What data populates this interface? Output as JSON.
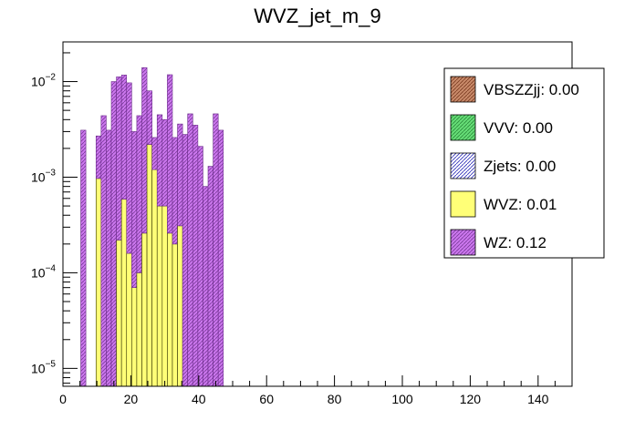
{
  "chart_data": {
    "type": "bar",
    "stacked": true,
    "title": "WVZ_jet_m_9",
    "xlabel": "",
    "ylabel": "",
    "x_scale": "linear",
    "y_scale": "log",
    "xlim": [
      0,
      150
    ],
    "ylim": [
      6.5e-06,
      0.026
    ],
    "bin_width": 1.5,
    "x_ticks": [
      0,
      20,
      40,
      60,
      80,
      100,
      120,
      140
    ],
    "y_ticks": [
      {
        "value": 1e-05,
        "base": "10",
        "exp": "−5"
      },
      {
        "value": 0.0001,
        "base": "10",
        "exp": "−4"
      },
      {
        "value": 0.001,
        "base": "10",
        "exp": "−3"
      },
      {
        "value": 0.01,
        "base": "10",
        "exp": "−2"
      }
    ],
    "legend": {
      "position": "top-right",
      "entries": [
        {
          "key": "VBSZZjj",
          "label": "VBSZZjj: 0.00",
          "color": "#a05a3c",
          "hatch": true
        },
        {
          "key": "VVV",
          "label": "VVV: 0.00",
          "color": "#66dd77",
          "hatch": true
        },
        {
          "key": "Zjets",
          "label": "Zjets: 0.00",
          "color": "#3333bb",
          "hatch": true
        },
        {
          "key": "WVZ",
          "label": "WVZ: 0.01",
          "color": "#ffff77",
          "hatch": false
        },
        {
          "key": "WZ",
          "label": "WZ: 0.12",
          "color": "#cc77ee",
          "hatch": true
        }
      ]
    },
    "bins": [
      {
        "x": 6.0,
        "WVZ": 0,
        "WZ": 0.0031
      },
      {
        "x": 10.5,
        "WVZ": 0.00097,
        "WZ": 0.0027
      },
      {
        "x": 12.0,
        "WVZ": 0,
        "WZ": 0.0044
      },
      {
        "x": 13.5,
        "WVZ": 0,
        "WZ": 0.0031
      },
      {
        "x": 15.0,
        "WVZ": 0,
        "WZ": 0.01
      },
      {
        "x": 16.5,
        "WVZ": 0.00022,
        "WZ": 0.0112
      },
      {
        "x": 18.0,
        "WVZ": 0.00059,
        "WZ": 0.0117
      },
      {
        "x": 19.5,
        "WVZ": 0.00016,
        "WZ": 0.0097
      },
      {
        "x": 21.0,
        "WVZ": 7e-05,
        "WZ": 0.003
      },
      {
        "x": 22.5,
        "WVZ": 0.0001,
        "WZ": 0.0044
      },
      {
        "x": 24.0,
        "WVZ": 0.00026,
        "WZ": 0.014
      },
      {
        "x": 25.5,
        "WVZ": 0.0022,
        "WZ": 0.008
      },
      {
        "x": 27.0,
        "WVZ": 0.0012,
        "WZ": 0.0026
      },
      {
        "x": 28.5,
        "WVZ": 0.0005,
        "WZ": 0.0045
      },
      {
        "x": 30.0,
        "WVZ": 0.0005,
        "WZ": 0.004
      },
      {
        "x": 31.5,
        "WVZ": 0.00026,
        "WZ": 0.0118
      },
      {
        "x": 33.0,
        "WVZ": 0.0002,
        "WZ": 0.0026
      },
      {
        "x": 34.5,
        "WVZ": 0.00031,
        "WZ": 0.0036
      },
      {
        "x": 36.0,
        "WVZ": 0.0,
        "WZ": 0.0028
      },
      {
        "x": 37.5,
        "WVZ": 0.0,
        "WZ": 0.0046
      },
      {
        "x": 39.0,
        "WVZ": 0.0,
        "WZ": 0.0035
      },
      {
        "x": 40.5,
        "WVZ": 0.0,
        "WZ": 0.0021
      },
      {
        "x": 42.0,
        "WVZ": 0.0,
        "WZ": 0.0008
      },
      {
        "x": 43.5,
        "WVZ": 0.0,
        "WZ": 0.0013
      },
      {
        "x": 45.0,
        "WVZ": 0.0,
        "WZ": 0.0046
      },
      {
        "x": 46.5,
        "WVZ": 0.0,
        "WZ": 0.0031
      }
    ]
  }
}
